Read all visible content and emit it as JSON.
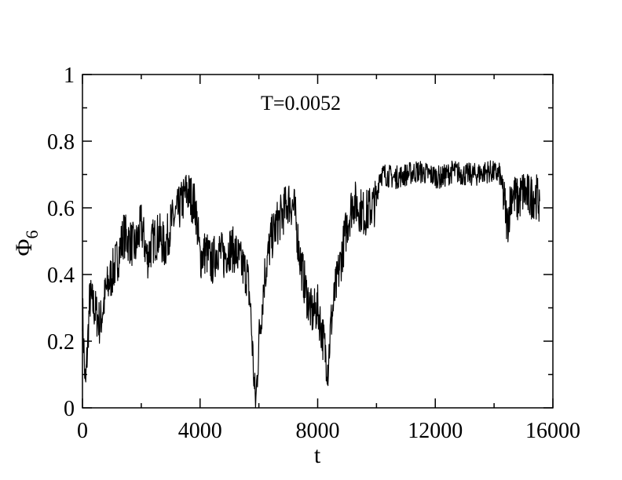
{
  "chart_data": {
    "type": "line",
    "title": "",
    "annotation": "T=0.0052",
    "xlabel": "t",
    "ylabel_symbol": "Φ",
    "ylabel_subscript": "6",
    "xlim": [
      0,
      16000
    ],
    "ylim": [
      0,
      1
    ],
    "xticks": [
      0,
      4000,
      8000,
      12000,
      16000
    ],
    "xtick_labels": [
      "0",
      "4000",
      "8000",
      "12000",
      "16000"
    ],
    "yticks": [
      0,
      0.2,
      0.4,
      0.6,
      0.8,
      1
    ],
    "ytick_labels": [
      "0",
      "0.2",
      "0.4",
      "0.6",
      "0.8",
      "1"
    ],
    "grid": false,
    "line_color": "#000000",
    "series": [
      {
        "x": [
          0,
          100,
          250,
          400,
          600,
          800,
          1000,
          1200,
          1400,
          1600,
          1800,
          2000,
          2200,
          2400,
          2600,
          2800,
          3000,
          3200,
          3400,
          3550,
          3700,
          3850,
          4000,
          4200,
          4400,
          4600,
          4800,
          5000,
          5200,
          5400,
          5600,
          5700,
          5800,
          5850,
          5900,
          6000,
          6100,
          6200,
          6400,
          6600,
          6800,
          7000,
          7200,
          7400,
          7600,
          7800,
          8000,
          8200,
          8350,
          8450,
          8600,
          8800,
          9000,
          9200,
          9400,
          9600,
          9800,
          10000,
          10100,
          10300,
          10600,
          11000,
          11400,
          11800,
          12200,
          12600,
          13000,
          13400,
          13800,
          14200,
          14350,
          14450,
          14600,
          14800,
          15000,
          15200,
          15400,
          15550
        ],
        "y": [
          0.3,
          0.05,
          0.33,
          0.3,
          0.25,
          0.35,
          0.4,
          0.45,
          0.52,
          0.5,
          0.48,
          0.55,
          0.45,
          0.5,
          0.52,
          0.48,
          0.55,
          0.58,
          0.62,
          0.65,
          0.63,
          0.6,
          0.45,
          0.47,
          0.43,
          0.48,
          0.45,
          0.48,
          0.47,
          0.43,
          0.4,
          0.32,
          0.15,
          0.05,
          0.02,
          0.2,
          0.3,
          0.4,
          0.5,
          0.55,
          0.58,
          0.62,
          0.6,
          0.45,
          0.35,
          0.28,
          0.3,
          0.2,
          0.12,
          0.25,
          0.35,
          0.45,
          0.55,
          0.62,
          0.6,
          0.58,
          0.6,
          0.62,
          0.7,
          0.7,
          0.69,
          0.7,
          0.71,
          0.7,
          0.69,
          0.71,
          0.7,
          0.7,
          0.71,
          0.7,
          0.62,
          0.55,
          0.65,
          0.62,
          0.65,
          0.63,
          0.64,
          0.62
        ]
      }
    ]
  }
}
